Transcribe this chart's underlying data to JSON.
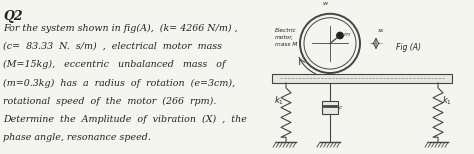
{
  "title": "Q2",
  "text_lines": [
    "For the system shown in fig(A),  (k= 4266 N/m) ,",
    "(c=  83.33  N.  s/m)  ,  electrical  motor  mass",
    "(M=15kg),   eccentric   unbalanced   mass   of",
    "(m=0.3kg)  has  a  radius  of  rotation  (e=3cm),",
    "rotational  speed  of  the  motor  (266  rpm).",
    "Determine  the  Amplitude  of  vibration  (X)  ,  the",
    "phase angle, resonance speed."
  ],
  "fig_label": "Fig (A)",
  "motor_label": "Electric\nmotor,\nmass M",
  "k1_label": "$k_1$",
  "c_label": "c",
  "bg_color": "#f5f5f0",
  "text_color": "#111111"
}
